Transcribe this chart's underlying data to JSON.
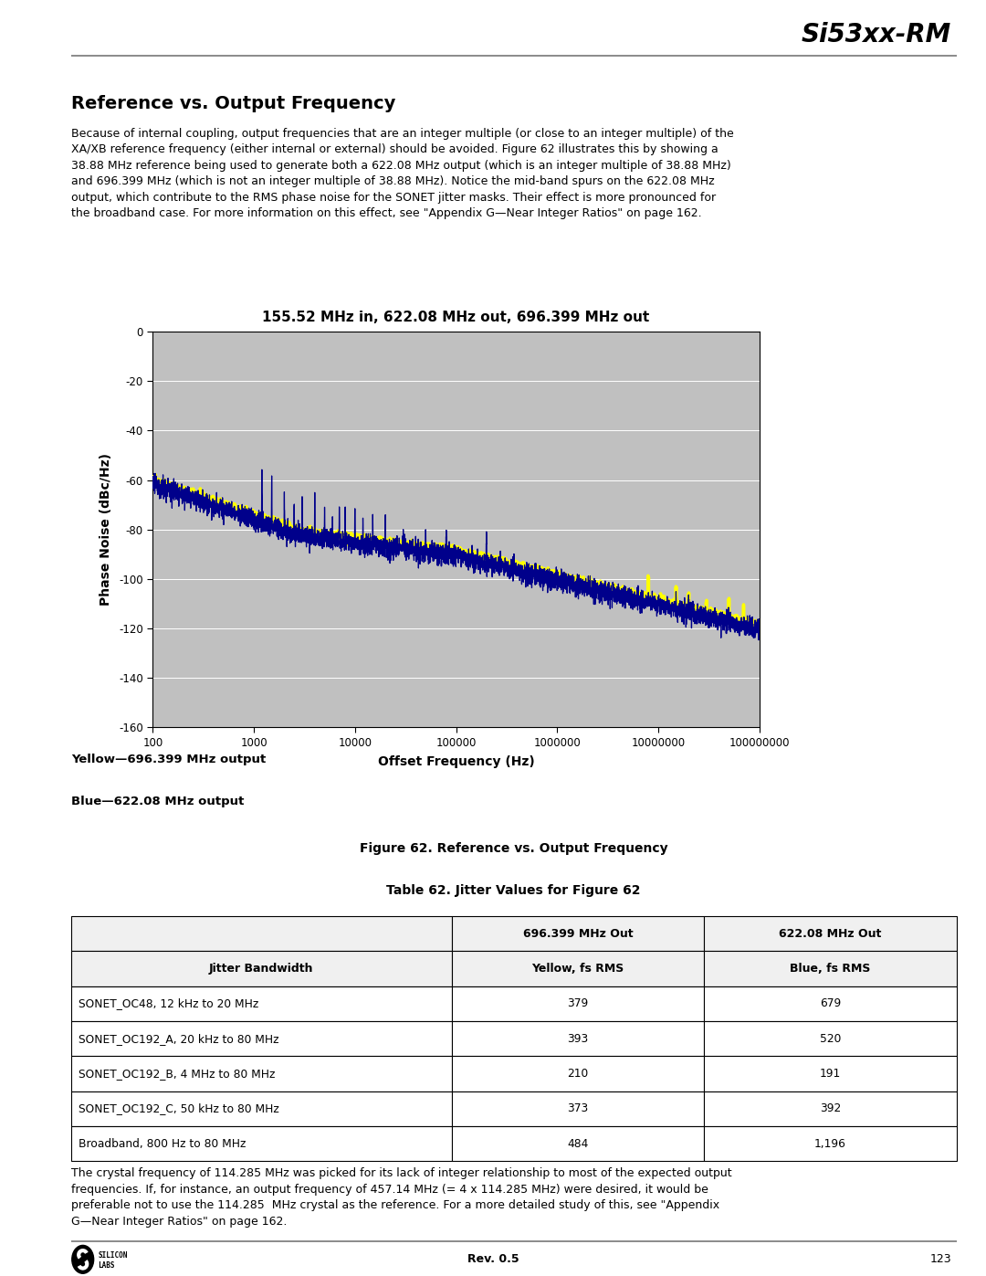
{
  "page_title": "Si53xx-RM",
  "section_title": "Reference vs. Output Frequency",
  "body_text": "Because of internal coupling, output frequencies that are an integer multiple (or close to an integer multiple) of the\nXA/XB reference frequency (either internal or external) should be avoided. Figure 62 illustrates this by showing a\n38.88 MHz reference being used to generate both a 622.08 MHz output (which is an integer multiple of 38.88 MHz)\nand 696.399 MHz (which is not an integer multiple of 38.88 MHz). Notice the mid-band spurs on the 622.08 MHz\noutput, which contribute to the RMS phase noise for the SONET jitter masks. Their effect is more pronounced for\nthe broadband case. For more information on this effect, see \"Appendix G—Near Integer Ratios\" on page 162.",
  "chart_title": "155.52 MHz in, 622.08 MHz out, 696.399 MHz out",
  "xlabel": "Offset Frequency (Hz)",
  "ylabel": "Phase Noise (dBc/Hz)",
  "ylim": [
    -160,
    0
  ],
  "yticks": [
    0,
    -20,
    -40,
    -60,
    -80,
    -100,
    -120,
    -140,
    -160
  ],
  "xlim_log": [
    100,
    100000000
  ],
  "xticks_log": [
    100,
    1000,
    10000,
    100000,
    1000000,
    10000000,
    100000000
  ],
  "xtick_labels": [
    "100",
    "1000",
    "10000",
    "100000",
    "1000000",
    "10000000",
    "100000000"
  ],
  "plot_bg": "#c0c0c0",
  "yellow_color": "#ffff00",
  "blue_color": "#00008b",
  "legend_yellow": "Yellow—696.399 MHz output",
  "legend_blue": "Blue—622.08 MHz output",
  "fig_caption": "Figure 62. Reference vs. Output Frequency",
  "table_caption": "Table 62. Jitter Values for Figure 62",
  "table_headers": [
    "",
    "696.399 MHz Out",
    "622.08 MHz Out"
  ],
  "table_subheaders": [
    "Jitter Bandwidth",
    "Yellow, fs RMS",
    "Blue, fs RMS"
  ],
  "table_rows": [
    [
      "SONET_OC48, 12 kHz to 20 MHz",
      "379",
      "679"
    ],
    [
      "SONET_OC192_A, 20 kHz to 80 MHz",
      "393",
      "520"
    ],
    [
      "SONET_OC192_B, 4 MHz to 80 MHz",
      "210",
      "191"
    ],
    [
      "SONET_OC192_C, 50 kHz to 80 MHz",
      "373",
      "392"
    ],
    [
      "Broadband, 800 Hz to 80 MHz",
      "484",
      "1,196"
    ]
  ],
  "footer_text": "The crystal frequency of 114.285 MHz was picked for its lack of integer relationship to most of the expected output\nfrequencies. If, for instance, an output frequency of 457.14 MHz (= 4 x 114.285 MHz) were desired, it would be\npreferable not to use the 114.285  MHz crystal as the reference. For a more detailed study of this, see \"Appendix\nG—Near Integer Ratios\" on page 162.",
  "page_number": "123",
  "rev": "Rev. 0.5"
}
